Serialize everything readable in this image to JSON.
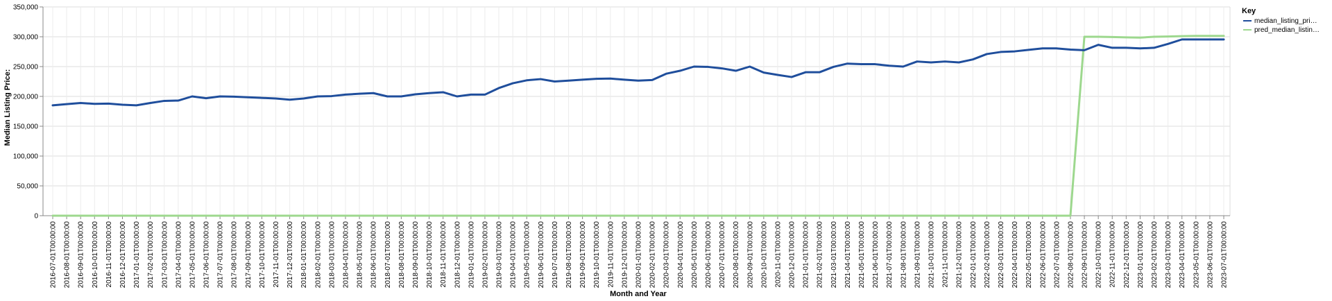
{
  "chart_data": {
    "type": "line",
    "title": "",
    "xlabel": "Month and Year",
    "ylabel": "Median Listing Price:",
    "ylim": [
      0,
      350000
    ],
    "yticks": [
      "0",
      "50,000",
      "100,000",
      "150,000",
      "200,000",
      "250,000",
      "300,000",
      "350,000"
    ],
    "grid": true,
    "legend": {
      "title": "Key",
      "position": "top-right"
    },
    "categories": [
      "2016-07-01T00:00:00",
      "2016-08-01T00:00:00",
      "2016-09-01T00:00:00",
      "2016-10-01T00:00:00",
      "2016-11-01T00:00:00",
      "2016-12-01T00:00:00",
      "2017-01-01T00:00:00",
      "2017-02-01T00:00:00",
      "2017-03-01T00:00:00",
      "2017-04-01T00:00:00",
      "2017-05-01T00:00:00",
      "2017-06-01T00:00:00",
      "2017-07-01T00:00:00",
      "2017-08-01T00:00:00",
      "2017-09-01T00:00:00",
      "2017-10-01T00:00:00",
      "2017-11-01T00:00:00",
      "2017-12-01T00:00:00",
      "2018-01-01T00:00:00",
      "2018-02-01T00:00:00",
      "2018-03-01T00:00:00",
      "2018-04-01T00:00:00",
      "2018-05-01T00:00:00",
      "2018-06-01T00:00:00",
      "2018-07-01T00:00:00",
      "2018-08-01T00:00:00",
      "2018-09-01T00:00:00",
      "2018-10-01T00:00:00",
      "2018-11-01T00:00:00",
      "2018-12-01T00:00:00",
      "2019-01-01T00:00:00",
      "2019-02-01T00:00:00",
      "2019-03-01T00:00:00",
      "2019-04-01T00:00:00",
      "2019-05-01T00:00:00",
      "2019-06-01T00:00:00",
      "2019-07-01T00:00:00",
      "2019-08-01T00:00:00",
      "2019-09-01T00:00:00",
      "2019-10-01T00:00:00",
      "2019-11-01T00:00:00",
      "2019-12-01T00:00:00",
      "2020-01-01T00:00:00",
      "2020-02-01T00:00:00",
      "2020-03-01T00:00:00",
      "2020-04-01T00:00:00",
      "2020-05-01T00:00:00",
      "2020-06-01T00:00:00",
      "2020-07-01T00:00:00",
      "2020-08-01T00:00:00",
      "2020-09-01T00:00:00",
      "2020-10-01T00:00:00",
      "2020-11-01T00:00:00",
      "2020-12-01T00:00:00",
      "2021-01-01T00:00:00",
      "2021-02-01T00:00:00",
      "2021-03-01T00:00:00",
      "2021-04-01T00:00:00",
      "2021-05-01T00:00:00",
      "2021-06-01T00:00:00",
      "2021-07-01T00:00:00",
      "2021-08-01T00:00:00",
      "2021-09-01T00:00:00",
      "2021-10-01T00:00:00",
      "2021-11-01T00:00:00",
      "2021-12-01T00:00:00",
      "2022-01-01T00:00:00",
      "2022-02-01T00:00:00",
      "2022-03-01T00:00:00",
      "2022-04-01T00:00:00",
      "2022-05-01T00:00:00",
      "2022-06-01T00:00:00",
      "2022-07-01T00:00:00",
      "2022-08-01T00:00:00",
      "2022-09-01T00:00:00",
      "2022-10-01T00:00:00",
      "2022-11-01T00:00:00",
      "2022-12-01T00:00:00",
      "2023-01-01T00:00:00",
      "2023-02-01T00:00:00",
      "2023-03-01T00:00:00",
      "2023-04-01T00:00:00",
      "2023-05-01T00:00:00",
      "2023-06-01T00:00:00",
      "2023-07-01T00:00:00"
    ],
    "series": [
      {
        "name": "median_listing_pri…",
        "color": "#1f4e9c",
        "values": [
          185000,
          187000,
          189000,
          187500,
          188000,
          186000,
          185000,
          189000,
          192500,
          193000,
          200000,
          197000,
          200000,
          199500,
          198500,
          197500,
          196500,
          194500,
          196500,
          200000,
          200500,
          203000,
          204500,
          205500,
          200000,
          200000,
          203500,
          205500,
          207000,
          200000,
          203000,
          203000,
          214000,
          222000,
          227000,
          229000,
          225000,
          226500,
          228000,
          229500,
          230000,
          228000,
          226500,
          227500,
          238000,
          243000,
          250000,
          249500,
          247000,
          243000,
          250000,
          240000,
          236000,
          232500,
          240500,
          240500,
          249500,
          255000,
          254000,
          254000,
          251500,
          250000,
          258500,
          257000,
          258500,
          257000,
          262000,
          271000,
          274500,
          275500,
          278000,
          280500,
          280500,
          278500,
          277500,
          286500,
          281500,
          281500,
          280500,
          281500,
          288000,
          295500,
          295500,
          295500,
          295500
        ]
      },
      {
        "name": "pred_median_listin…",
        "color": "#9dd88e",
        "values": [
          0,
          0,
          0,
          0,
          0,
          0,
          0,
          0,
          0,
          0,
          0,
          0,
          0,
          0,
          0,
          0,
          0,
          0,
          0,
          0,
          0,
          0,
          0,
          0,
          0,
          0,
          0,
          0,
          0,
          0,
          0,
          0,
          0,
          0,
          0,
          0,
          0,
          0,
          0,
          0,
          0,
          0,
          0,
          0,
          0,
          0,
          0,
          0,
          0,
          0,
          0,
          0,
          0,
          0,
          0,
          0,
          0,
          0,
          0,
          0,
          0,
          0,
          0,
          0,
          0,
          0,
          0,
          0,
          0,
          0,
          0,
          0,
          0,
          0,
          300000,
          300000,
          299500,
          299000,
          298500,
          300000,
          300500,
          301000,
          301500,
          301500,
          301500
        ]
      }
    ]
  }
}
